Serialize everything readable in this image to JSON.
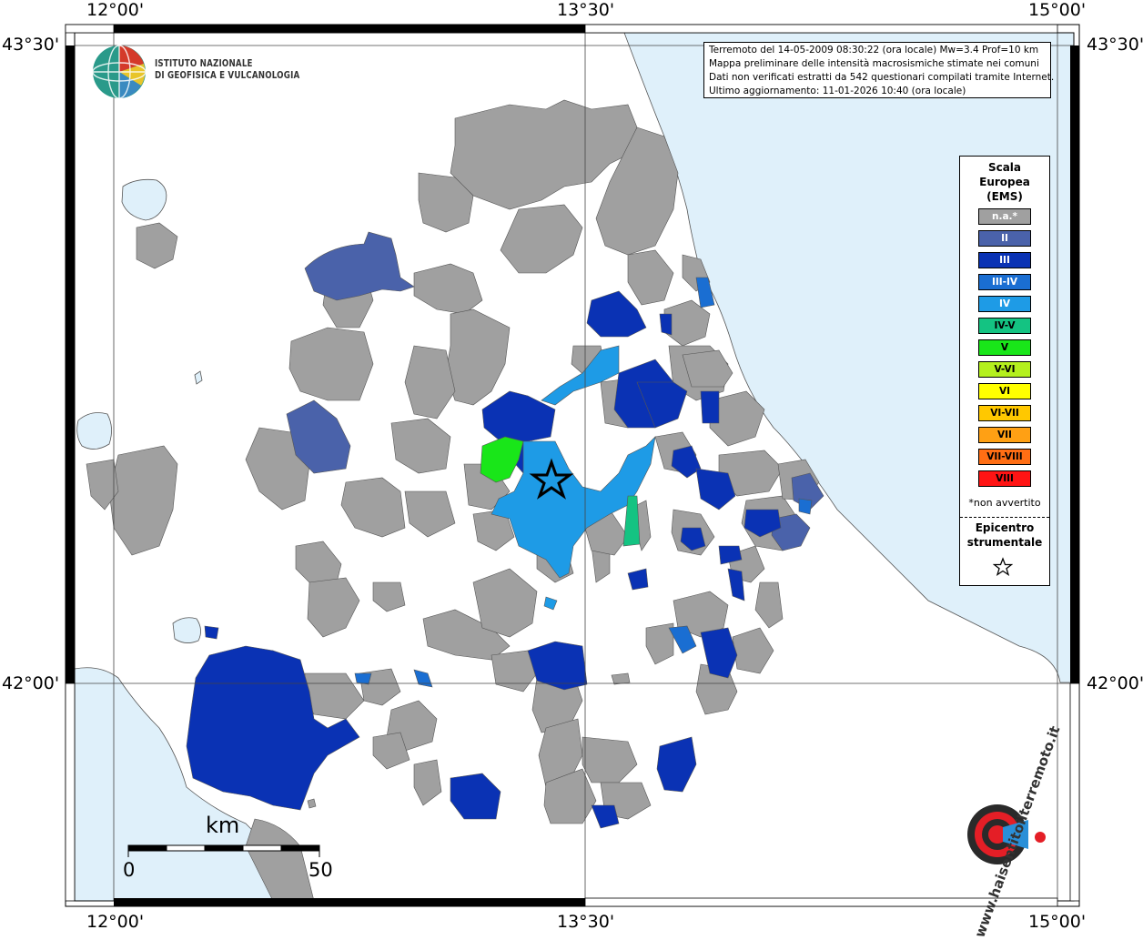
{
  "coords": {
    "top": [
      "12°00'",
      "13°30'",
      "15°00'"
    ],
    "bottom": [
      "12°00'",
      "13°30'",
      "15°00'"
    ],
    "left": [
      "43°30'",
      "42°00'"
    ],
    "right": [
      "43°30'",
      "42°00'"
    ]
  },
  "institution": {
    "line1": "ISTITUTO NAZIONALE",
    "line2": "DI GEOFISICA E VULCANOLOGIA"
  },
  "info": {
    "line1": "Terremoto del 14-05-2009 08:30:22 (ora locale) Mw=3.4 Prof=10 km",
    "line2": "Mappa preliminare delle intensità macrosismiche stimate nei comuni",
    "line3": "Dati non verificati estratti da 542 questionari compilati tramite Internet.",
    "line4": "Ultimo aggiornamento: 11-01-2026 10:40 (ora locale)"
  },
  "legend": {
    "title_line1": "Scala",
    "title_line2": "Europea",
    "title_line3": "(EMS)",
    "items": [
      {
        "label": "n.a.*",
        "color": "#a0a0a0",
        "text_color": "#ffffff"
      },
      {
        "label": "II",
        "color": "#4a62aa",
        "text_color": "#ffffff"
      },
      {
        "label": "III",
        "color": "#0a32b4",
        "text_color": "#ffffff"
      },
      {
        "label": "III-IV",
        "color": "#1a6ed2",
        "text_color": "#ffffff"
      },
      {
        "label": "IV",
        "color": "#1e9be6",
        "text_color": "#ffffff"
      },
      {
        "label": "IV-V",
        "color": "#14c382",
        "text_color": "#000000"
      },
      {
        "label": "V",
        "color": "#19e619",
        "text_color": "#000000"
      },
      {
        "label": "V-VI",
        "color": "#b4f01e",
        "text_color": "#000000"
      },
      {
        "label": "VI",
        "color": "#ffff00",
        "text_color": "#000000"
      },
      {
        "label": "VI-VII",
        "color": "#ffc800",
        "text_color": "#000000"
      },
      {
        "label": "VII",
        "color": "#ffa014",
        "text_color": "#000000"
      },
      {
        "label": "VII-VIII",
        "color": "#ff6e14",
        "text_color": "#000000"
      },
      {
        "label": "VIII",
        "color": "#ff1414",
        "text_color": "#000000"
      }
    ],
    "note": "*non avvertito",
    "epicenter_line1": "Epicentro",
    "epicenter_line2": "strumentale",
    "epicenter_icon": "star-icon"
  },
  "scalebar": {
    "unit": "km",
    "min": "0",
    "max": "50"
  },
  "colors": {
    "sea": "#dff0fa",
    "grey": "#a0a0a0",
    "frame": "#000000"
  },
  "watermark": {
    "text": "www.haisentitoilterremoto.it"
  }
}
